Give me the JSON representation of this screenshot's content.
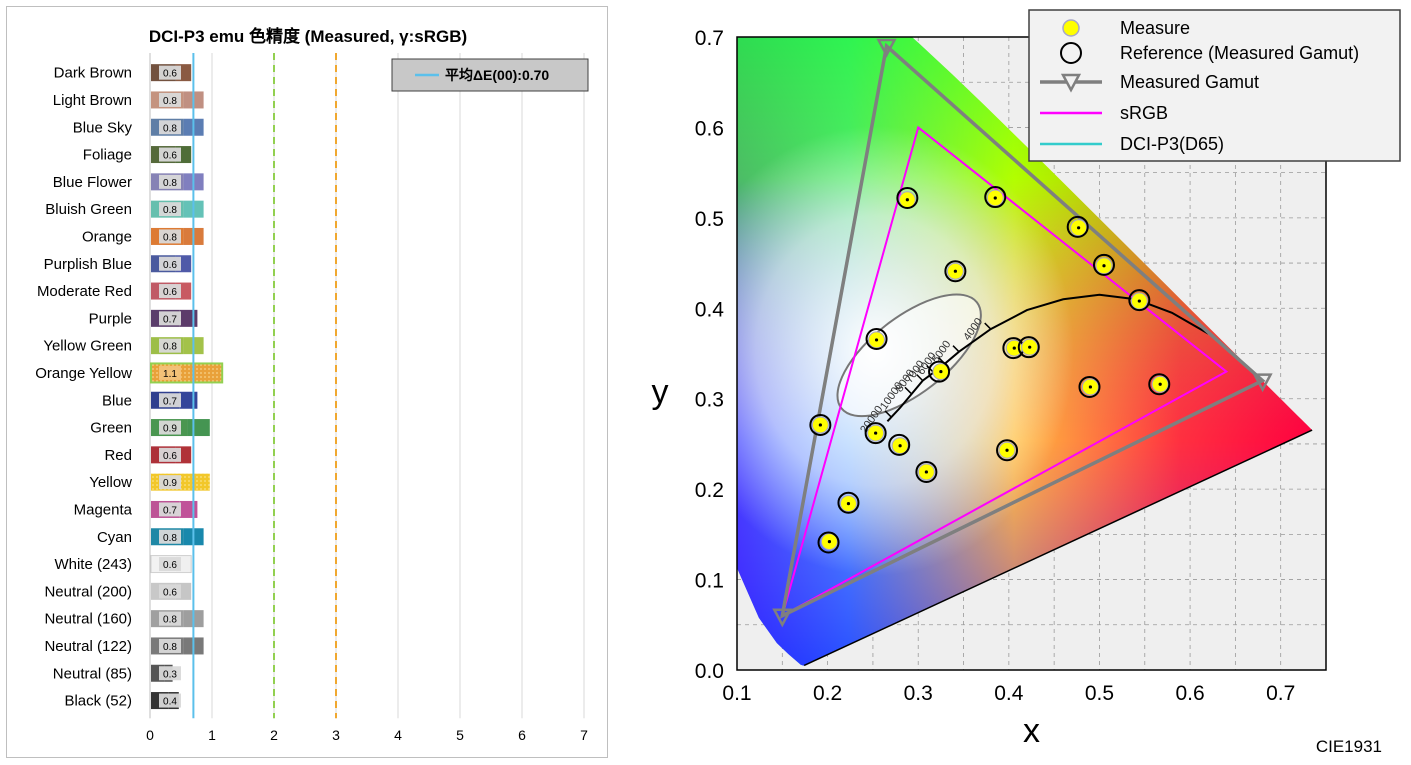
{
  "chart_data": [
    {
      "type": "bar",
      "title": "DCI-P3 emu 色精度 (Measured, γ:sRGB)",
      "orientation": "horizontal",
      "xlim": [
        0,
        7
      ],
      "x_ticks": [
        "0",
        "1",
        "2",
        "3",
        "4",
        "5",
        "6",
        "7"
      ],
      "grid": true,
      "legend": {
        "position": "top-right",
        "label": "平均ΔE(00):0.70"
      },
      "average": 0.7,
      "reference_lines": [
        {
          "value": 0.7,
          "color": "#5bc0eb",
          "style": "solid"
        },
        {
          "value": 2,
          "color": "#92d050",
          "style": "dashed"
        },
        {
          "value": 3,
          "color": "#f0a830",
          "style": "dashed"
        }
      ],
      "categories": [
        "Dark Brown",
        "Light Brown",
        "Blue Sky",
        "Foliage",
        "Blue Flower",
        "Bluish Green",
        "Orange",
        "Purplish Blue",
        "Moderate Red",
        "Purple",
        "Yellow Green",
        "Orange Yellow",
        "Blue",
        "Green",
        "Red",
        "Yellow",
        "Magenta",
        "Cyan",
        "White (243)",
        "Neutral (200)",
        "Neutral (160)",
        "Neutral (122)",
        "Neutral (85)",
        "Black (52)"
      ],
      "values": [
        0.6,
        0.8,
        0.8,
        0.6,
        0.8,
        0.8,
        0.8,
        0.6,
        0.6,
        0.7,
        0.8,
        1.1,
        0.7,
        0.9,
        0.6,
        0.9,
        0.7,
        0.8,
        0.6,
        0.6,
        0.8,
        0.8,
        0.3,
        0.4
      ],
      "value_labels": [
        "0.6",
        "0.8",
        "0.8",
        "0.6",
        "0.8",
        "0.8",
        "0.8",
        "0.6",
        "0.6",
        "0.7",
        "0.8",
        "1.1",
        "0.7",
        "0.9",
        "0.6",
        "0.9",
        "0.7",
        "0.8",
        "0.6",
        "0.6",
        "0.8",
        "0.8",
        "0.3",
        "0.4"
      ],
      "bar_colors": [
        [
          "#73523f",
          "#8a5a42"
        ],
        [
          "#c4937f",
          "#c09082"
        ],
        [
          "#5f7ea6",
          "#5b7db3"
        ],
        [
          "#55693a",
          "#4f6d38"
        ],
        [
          "#8682b5",
          "#807fbf"
        ],
        [
          "#66bfae",
          "#64c2b7"
        ],
        [
          "#dd7b34",
          "#d97b3c"
        ],
        [
          "#4a5a9e",
          "#4f5aa8"
        ],
        [
          "#c05a66",
          "#c85a62"
        ],
        [
          "#5a3d6b",
          "#5c3b6a"
        ],
        [
          "#9dbe48",
          "#a3c24a"
        ],
        [
          "#e6a02e",
          "#e8a23a"
        ],
        [
          "#2f3f8f",
          "#34459a"
        ],
        [
          "#4a9650",
          "#459552"
        ],
        [
          "#ad3139",
          "#b03238"
        ],
        [
          "#f0cb2b",
          "#f2c72a"
        ],
        [
          "#bd5496",
          "#c05299"
        ],
        [
          "#1f88a6",
          "#1988ac"
        ],
        [
          "#f2f2f2",
          "#f0f0f0"
        ],
        [
          "#c8c8c8",
          "#c6c6c6"
        ],
        [
          "#a0a0a0",
          "#9e9e9e"
        ],
        [
          "#7a7a7a",
          "#797979"
        ],
        [
          "#555555",
          "#535353"
        ],
        [
          "#343434",
          "#333333"
        ]
      ]
    },
    {
      "type": "scatter",
      "title": "CIE1931",
      "xlabel": "x",
      "ylabel": "y",
      "xlim": [
        0.1,
        0.75
      ],
      "ylim": [
        0.0,
        0.7
      ],
      "x_ticks": [
        "0.1",
        "0.2",
        "0.3",
        "0.4",
        "0.5",
        "0.6",
        "0.7"
      ],
      "y_ticks": [
        "0.0",
        "0.1",
        "0.2",
        "0.3",
        "0.4",
        "0.5",
        "0.6",
        "0.7"
      ],
      "grid": true,
      "legend": {
        "position": "top-right",
        "entries": [
          "Measure",
          "Reference (Measured Gamut)",
          "Measured Gamut",
          "sRGB",
          "DCI-P3(D65)"
        ]
      },
      "series": [
        {
          "name": "Measure",
          "color": "#ffff00",
          "points": [
            [
              0.288,
              0.52
            ],
            [
              0.385,
              0.522
            ],
            [
              0.477,
              0.489
            ],
            [
              0.505,
              0.447
            ],
            [
              0.341,
              0.441
            ],
            [
              0.544,
              0.408
            ],
            [
              0.254,
              0.365
            ],
            [
              0.406,
              0.356
            ],
            [
              0.423,
              0.357
            ],
            [
              0.325,
              0.33
            ],
            [
              0.49,
              0.313
            ],
            [
              0.567,
              0.316
            ],
            [
              0.192,
              0.271
            ],
            [
              0.253,
              0.262
            ],
            [
              0.28,
              0.248
            ],
            [
              0.398,
              0.243
            ],
            [
              0.309,
              0.219
            ],
            [
              0.223,
              0.184
            ],
            [
              0.202,
              0.142
            ]
          ]
        },
        {
          "name": "Reference (Measured Gamut)",
          "color": "#000000",
          "points": [
            [
              0.288,
              0.522
            ],
            [
              0.385,
              0.523
            ],
            [
              0.476,
              0.49
            ],
            [
              0.505,
              0.448
            ],
            [
              0.341,
              0.441
            ],
            [
              0.544,
              0.409
            ],
            [
              0.254,
              0.366
            ],
            [
              0.405,
              0.356
            ],
            [
              0.422,
              0.357
            ],
            [
              0.323,
              0.33
            ],
            [
              0.489,
              0.313
            ],
            [
              0.566,
              0.316
            ],
            [
              0.192,
              0.271
            ],
            [
              0.253,
              0.262
            ],
            [
              0.279,
              0.249
            ],
            [
              0.398,
              0.243
            ],
            [
              0.309,
              0.219
            ],
            [
              0.223,
              0.185
            ],
            [
              0.201,
              0.141
            ]
          ]
        },
        {
          "name": "Measured Gamut",
          "color": "#7f7f7f",
          "points": [
            [
              0.68,
              0.32
            ],
            [
              0.265,
              0.69
            ],
            [
              0.15,
              0.06
            ]
          ]
        },
        {
          "name": "sRGB",
          "color": "#ff00ff",
          "points": [
            [
              0.64,
              0.33
            ],
            [
              0.3,
              0.6
            ],
            [
              0.15,
              0.06
            ]
          ]
        },
        {
          "name": "DCI-P3(D65)",
          "color": "#33cccc",
          "points": [
            [
              0.68,
              0.32
            ],
            [
              0.265,
              0.69
            ],
            [
              0.15,
              0.06
            ]
          ]
        }
      ],
      "planckian_labels": [
        "4000",
        "5000",
        "6000",
        "7000",
        "8000",
        "10000",
        "20000"
      ]
    }
  ]
}
